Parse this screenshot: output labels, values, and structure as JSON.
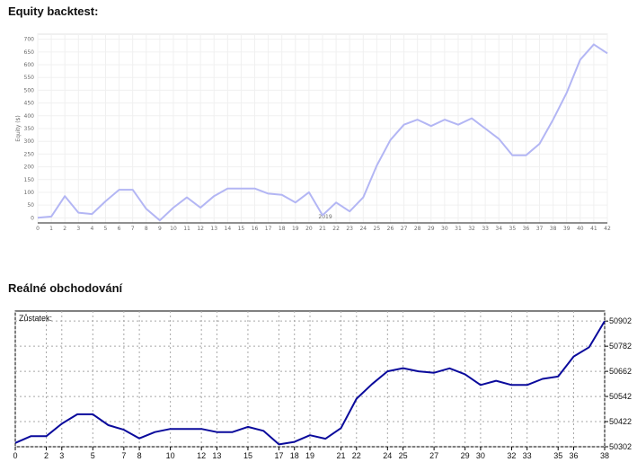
{
  "page": {
    "heading_1": "Equity backtest:",
    "heading_2": "Reálné obchodování"
  },
  "colors": {
    "line_1": "#b3b6f4",
    "line_2": "#0a0a9c",
    "grid_1": "#f0f0f0",
    "grid_2": "#a7a7a7"
  },
  "chart_data": [
    {
      "type": "line",
      "title": "",
      "xlabel": "",
      "ylabel": "Equity ($)",
      "x": [
        0,
        1,
        2,
        3,
        4,
        5,
        6,
        7,
        8,
        9,
        10,
        11,
        12,
        13,
        14,
        15,
        16,
        17,
        18,
        19,
        20,
        21,
        22,
        23,
        24,
        25,
        26,
        27,
        28,
        29,
        30,
        31,
        32,
        33,
        34,
        35,
        36,
        37,
        38,
        39,
        40,
        41,
        42
      ],
      "x_ticks": [
        "0",
        "1",
        "2",
        "3",
        "4",
        "5",
        "6",
        "7",
        "8",
        "9",
        "10",
        "11",
        "12",
        "13",
        "14",
        "15",
        "16",
        "17",
        "18",
        "19",
        "20",
        "21",
        "22",
        "23",
        "24",
        "25",
        "26",
        "27",
        "28",
        "29",
        "30",
        "31",
        "32",
        "33",
        "34",
        "35",
        "36",
        "37",
        "38",
        "39",
        "40",
        "41",
        "42"
      ],
      "y_ticks": [
        "0",
        "50",
        "100",
        "150",
        "200",
        "250",
        "300",
        "350",
        "400",
        "450",
        "500",
        "550",
        "600",
        "650",
        "700"
      ],
      "ylim": [
        -20,
        720
      ],
      "xlim": [
        0,
        42
      ],
      "grid": true,
      "series": [
        {
          "values": [
            0,
            5,
            85,
            20,
            15,
            65,
            110,
            110,
            35,
            -10,
            40,
            80,
            40,
            85,
            115,
            115,
            115,
            95,
            90,
            60,
            100,
            10,
            60,
            25,
            80,
            205,
            305,
            365,
            385,
            360,
            385,
            365,
            390,
            350,
            310,
            245,
            245,
            290,
            385,
            490,
            620,
            680,
            645
          ]
        }
      ],
      "inline_label": "2019"
    },
    {
      "type": "line",
      "title": "",
      "xlabel": "",
      "ylabel": "",
      "x": [
        0,
        1,
        2,
        3,
        4,
        5,
        6,
        7,
        8,
        9,
        10,
        11,
        12,
        13,
        14,
        15,
        16,
        17,
        18,
        19,
        20,
        21,
        22,
        23,
        24,
        25,
        26,
        27,
        28,
        29,
        30,
        31,
        32,
        33,
        34,
        35,
        36,
        37,
        38
      ],
      "x_ticks": [
        "0",
        "2",
        "3",
        "5",
        "7",
        "8",
        "10",
        "12",
        "13",
        "15",
        "17",
        "18",
        "19",
        "21",
        "22",
        "24",
        "25",
        "27",
        "29",
        "30",
        "32",
        "33",
        "35",
        "36",
        "38"
      ],
      "y_ticks": [
        "50302",
        "50422",
        "50542",
        "50662",
        "50782",
        "50902"
      ],
      "ylim": [
        50302,
        50950
      ],
      "xlim": [
        0,
        38
      ],
      "grid": true,
      "corner_label": "Zůstatek:",
      "series": [
        {
          "values": [
            50320,
            50352,
            50352,
            50412,
            50457,
            50457,
            50405,
            50383,
            50342,
            50372,
            50387,
            50387,
            50387,
            50372,
            50372,
            50397,
            50378,
            50313,
            50325,
            50357,
            50340,
            50391,
            50531,
            50601,
            50662,
            50677,
            50662,
            50655,
            50676,
            50648,
            50597,
            50617,
            50597,
            50597,
            50626,
            50637,
            50733,
            50777,
            50902
          ]
        }
      ]
    }
  ]
}
